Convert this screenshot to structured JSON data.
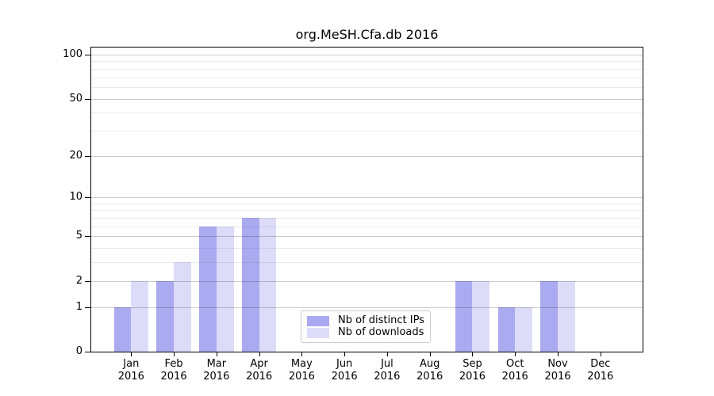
{
  "title": "org.MeSH.Cfa.db 2016",
  "colors": {
    "distinct_ips": "#aaaaf0",
    "downloads": "#dcdcf9"
  },
  "chart_data": {
    "type": "bar",
    "title": "org.MeSH.Cfa.db 2016",
    "year": "2016",
    "categories": [
      "Jan",
      "Feb",
      "Mar",
      "Apr",
      "May",
      "Jun",
      "Jul",
      "Aug",
      "Sep",
      "Oct",
      "Nov",
      "Dec"
    ],
    "series": [
      {
        "name": "Nb of distinct IPs",
        "color_key": "distinct_ips",
        "values": [
          1,
          2,
          6,
          7,
          0,
          0,
          0,
          0,
          2,
          1,
          2,
          0
        ]
      },
      {
        "name": "Nb of downloads",
        "color_key": "downloads",
        "values": [
          2,
          3,
          6,
          7,
          0,
          0,
          0,
          0,
          2,
          1,
          2,
          0
        ]
      }
    ],
    "xlabel": "",
    "ylabel": "",
    "yscale": "log1p",
    "ylim": [
      0,
      113
    ],
    "y_ticks": [
      0,
      1,
      2,
      5,
      10,
      20,
      50,
      100
    ],
    "y_minor_ticks": [
      3,
      4,
      6,
      7,
      8,
      9,
      30,
      40,
      60,
      70,
      80,
      90
    ],
    "grid": true,
    "legend_position": "inside-bottom-center"
  }
}
